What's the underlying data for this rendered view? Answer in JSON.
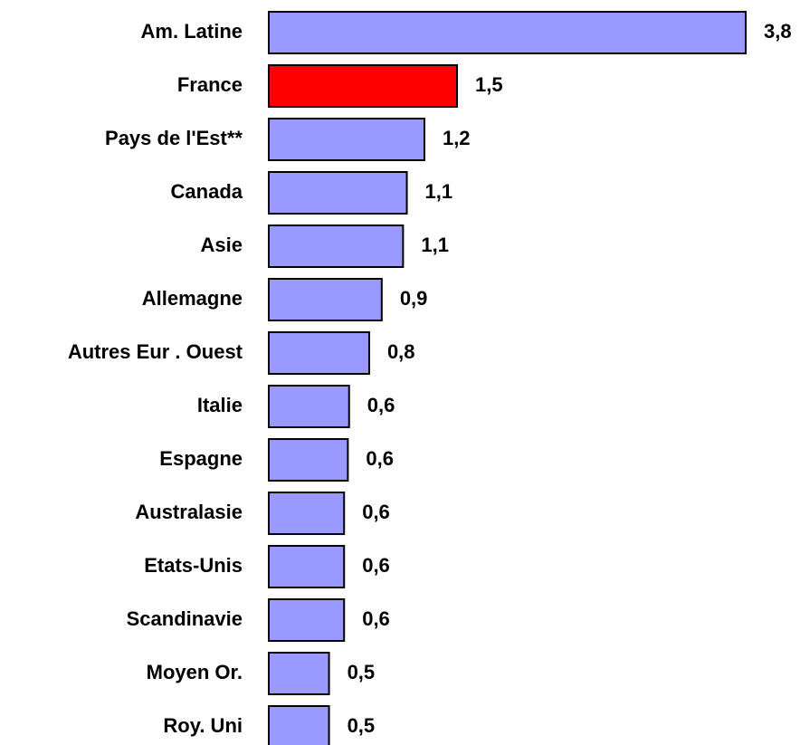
{
  "chart_data": {
    "type": "hbar",
    "categories": [
      "Am. Latine",
      "France",
      "Pays de l'Est**",
      "Canada",
      "Asie",
      "Allemagne",
      "Autres Eur . Ouest",
      "Italie",
      "Espagne",
      "Australasie",
      "Etats-Unis",
      "Scandinavie",
      "Moyen Or.",
      "Roy. Uni"
    ],
    "values": [
      3.8,
      1.5,
      1.24,
      1.1,
      1.07,
      0.9,
      0.8,
      0.64,
      0.63,
      0.6,
      0.6,
      0.6,
      0.48,
      0.48
    ],
    "value_labels": [
      "3,8",
      "1,5",
      "1,2",
      "1,1",
      "1,1",
      "0,9",
      "0,8",
      "0,6",
      "0,6",
      "0,6",
      "0,6",
      "0,6",
      "0,5",
      "0,5"
    ],
    "colors": [
      "#9999ff",
      "#ff0000",
      "#9999ff",
      "#9999ff",
      "#9999ff",
      "#9999ff",
      "#9999ff",
      "#9999ff",
      "#9999ff",
      "#9999ff",
      "#9999ff",
      "#9999ff",
      "#9999ff",
      "#9999ff"
    ]
  }
}
